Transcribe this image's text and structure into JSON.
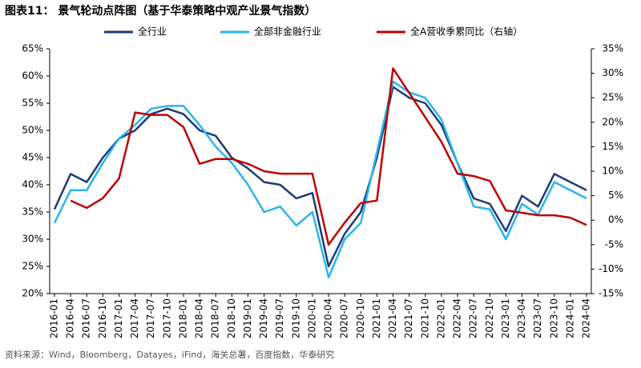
{
  "chart_data": {
    "type": "line",
    "title": "图表11：  景气轮动点阵图（基于华泰策略中观产业景气指数）",
    "source": "资料来源：Wind，Bloomberg，Datayes，iFind，海关总署，百度指数，华泰研究",
    "categories": [
      "2016-01",
      "2016-04",
      "2016-07",
      "2016-10",
      "2017-01",
      "2017-04",
      "2017-07",
      "2017-10",
      "2018-01",
      "2018-04",
      "2018-07",
      "2018-10",
      "2019-01",
      "2019-04",
      "2019-07",
      "2019-10",
      "2020-01",
      "2020-04",
      "2020-07",
      "2020-10",
      "2021-01",
      "2021-04",
      "2021-07",
      "2021-10",
      "2022-01",
      "2022-04",
      "2022-07",
      "2022-10",
      "2023-01",
      "2023-04",
      "2023-07",
      "2023-10",
      "2024-01",
      "2024-04"
    ],
    "series": [
      {
        "name": "全行业",
        "color": "#1f3a7a",
        "values": [
          35.5,
          42,
          40.5,
          45,
          48.5,
          50,
          53,
          54,
          53,
          50,
          49,
          45,
          43,
          40.5,
          40,
          37.5,
          38.5,
          25,
          31,
          35,
          45,
          58,
          56,
          55,
          51,
          44,
          37.5,
          36.5,
          31.5,
          38,
          36,
          42,
          40.5,
          39
        ]
      },
      {
        "name": "全部非金融行业",
        "color": "#29b6f0",
        "values": [
          33,
          39,
          39,
          44,
          48.5,
          51,
          54,
          54.5,
          54.5,
          51,
          47,
          44,
          40,
          35,
          36,
          32.5,
          35,
          23,
          30,
          33,
          46,
          59,
          57,
          56,
          52,
          44,
          36,
          35.5,
          30,
          36.5,
          34.5,
          40.5,
          39,
          37.5
        ]
      },
      {
        "name": "全A营收季累同比（右轴）",
        "color": "#c00000",
        "axis": "y2",
        "values": [
          null,
          4,
          2.5,
          4.5,
          8.5,
          22,
          21.5,
          21.5,
          19,
          11.5,
          12.5,
          12.5,
          11.5,
          10,
          9.5,
          9.5,
          9.5,
          -5,
          -0.5,
          3.5,
          4,
          31,
          26,
          21,
          16,
          9.5,
          9,
          8,
          2,
          1.5,
          1,
          1,
          0.5,
          -1
        ]
      }
    ],
    "ylim": [
      20,
      65
    ],
    "yticks": [
      {
        "value": 20,
        "label": "20%"
      },
      {
        "value": 25,
        "label": "25%"
      },
      {
        "value": 30,
        "label": "30%"
      },
      {
        "value": 35,
        "label": "35%"
      },
      {
        "value": 40,
        "label": "40%"
      },
      {
        "value": 45,
        "label": "45%"
      },
      {
        "value": 50,
        "label": "50%"
      },
      {
        "value": 55,
        "label": "55%"
      },
      {
        "value": 60,
        "label": "60%"
      },
      {
        "value": 65,
        "label": "65%"
      }
    ],
    "y2lim": [
      -15,
      35
    ],
    "y2ticks": [
      {
        "value": -15,
        "label": "-15%"
      },
      {
        "value": -10,
        "label": "-10%"
      },
      {
        "value": -5,
        "label": "-5%"
      },
      {
        "value": 0,
        "label": "0%"
      },
      {
        "value": 5,
        "label": "5%"
      },
      {
        "value": 10,
        "label": "10%"
      },
      {
        "value": 15,
        "label": "15%"
      },
      {
        "value": 20,
        "label": "20%"
      },
      {
        "value": 25,
        "label": "25%"
      },
      {
        "value": 30,
        "label": "30%"
      },
      {
        "value": 35,
        "label": "35%"
      }
    ]
  }
}
